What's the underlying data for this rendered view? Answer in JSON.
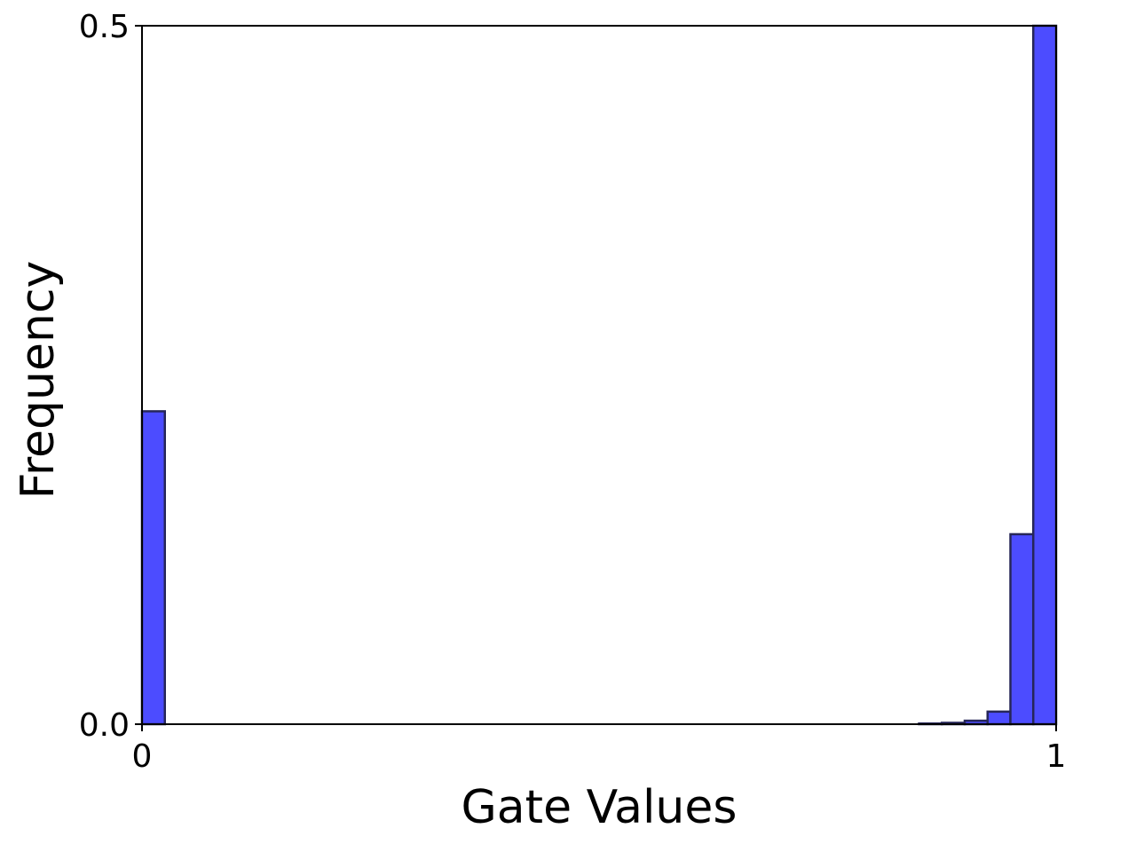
{
  "chart_data": {
    "type": "bar",
    "title": "",
    "xlabel": "Gate Values",
    "ylabel": "Frequency",
    "xlim": [
      0,
      1
    ],
    "ylim": [
      0,
      0.5
    ],
    "x_ticks": [
      {
        "value": 0,
        "label": "0"
      },
      {
        "value": 1,
        "label": "1"
      }
    ],
    "y_ticks": [
      {
        "value": 0,
        "label": "0.0"
      },
      {
        "value": 0.5,
        "label": "0.5"
      }
    ],
    "bins": 40,
    "bin_width": 0.025,
    "bars": [
      {
        "x0": 0.0,
        "x1": 0.025,
        "value": 0.224
      },
      {
        "x0": 0.85,
        "x1": 0.875,
        "value": 0.0005
      },
      {
        "x0": 0.875,
        "x1": 0.9,
        "value": 0.001
      },
      {
        "x0": 0.9,
        "x1": 0.925,
        "value": 0.0025
      },
      {
        "x0": 0.925,
        "x1": 0.95,
        "value": 0.009
      },
      {
        "x0": 0.95,
        "x1": 0.975,
        "value": 0.136
      },
      {
        "x0": 0.975,
        "x1": 1.0,
        "value": 0.5
      }
    ],
    "grid": false,
    "legend": "none",
    "colors": {
      "bar_fill": "#4c4cff",
      "bar_edge": "#262659",
      "axis": "#000000"
    }
  }
}
